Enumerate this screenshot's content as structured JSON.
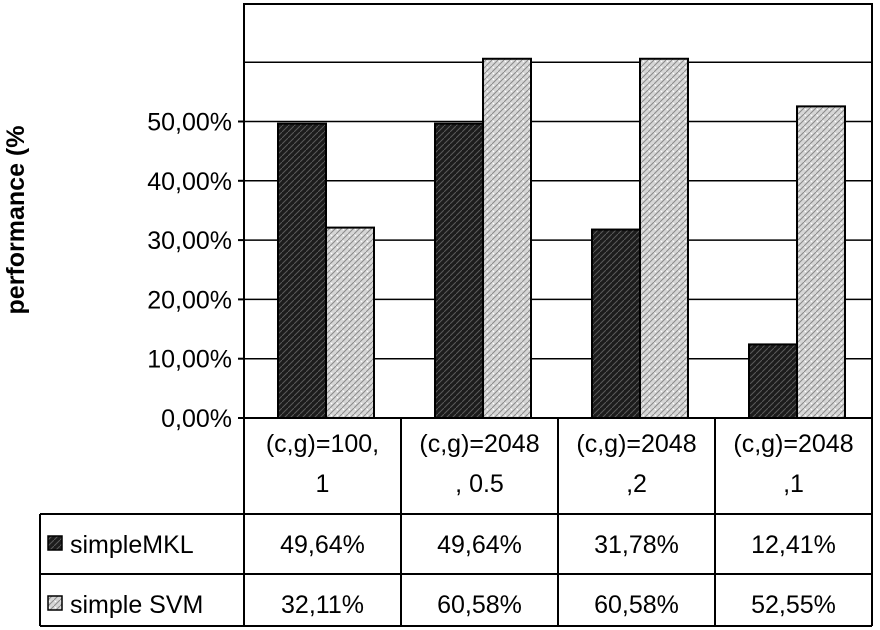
{
  "chart_data": {
    "type": "bar",
    "ylabel": "performance (%",
    "ylim": [
      0,
      60
    ],
    "yticks": [
      "0,00%",
      "10,00%",
      "20,00%",
      "30,00%",
      "40,00%",
      "50,00%"
    ],
    "ytick_values": [
      0,
      10,
      20,
      30,
      40,
      50
    ],
    "grid": true,
    "categories": [
      [
        "(c,g)=100,",
        "1"
      ],
      [
        "(c,g)=2048",
        ", 0.5"
      ],
      [
        "(c,g)=2048",
        ",2"
      ],
      [
        "(c,g)=2048",
        ",1"
      ]
    ],
    "series": [
      {
        "name": "simpleMKL",
        "values": [
          49.64,
          49.64,
          31.78,
          12.41
        ],
        "labels": [
          "49,64%",
          "49,64%",
          "31,78%",
          "12,41%"
        ],
        "color": "#1a1a1a"
      },
      {
        "name": "simple SVM",
        "values": [
          32.11,
          60.58,
          60.58,
          52.55
        ],
        "labels": [
          "32,11%",
          "60,58%",
          "60,58%",
          "52,55%"
        ],
        "color": "#c8c8c8"
      }
    ]
  }
}
